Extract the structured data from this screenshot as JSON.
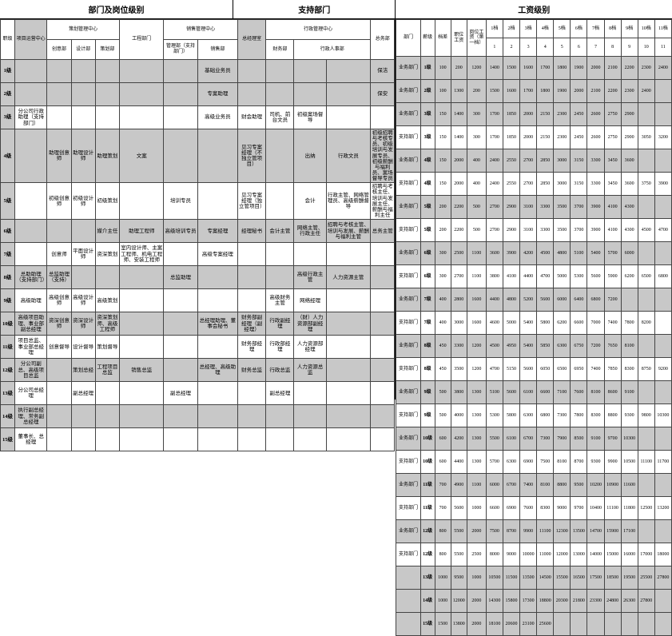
{
  "titles": {
    "left": "部门及岗位级别",
    "mid": "支持部门",
    "right": "工资级别"
  },
  "left_headers": {
    "row1": [
      "职级",
      "项目运营中心",
      "策划管理中心",
      "",
      "",
      "工程部门",
      "销售管理中心",
      "",
      "总经理室",
      "行政管理中心",
      "",
      "",
      ""
    ],
    "row2": [
      "",
      "",
      "创意部",
      "设计部",
      "策划部",
      "",
      "管理部（支持部门）",
      "销售部",
      "",
      "财务部",
      "行政人事部",
      "",
      "总务部"
    ]
  },
  "left_grades": [
    "1级",
    "2级",
    "3级",
    "4级",
    "5级",
    "6级",
    "7级",
    "8级",
    "9级",
    "10级",
    "11级",
    "12级",
    "13级",
    "14级",
    "15级"
  ],
  "left_cells": {
    "r1": [
      "",
      "",
      "",
      "",
      "",
      "",
      "基础业务员",
      "",
      "",
      "",
      "",
      "保洁"
    ],
    "r2": [
      "",
      "",
      "",
      "",
      "",
      "",
      "专案助理",
      "",
      "",
      "",
      "",
      "保安"
    ],
    "r3": [
      "分公司行政助理（支持部门）",
      "",
      "",
      "",
      "",
      "",
      "高级业务员",
      "财会助理",
      "司机、前台文员",
      "初级案场督导",
      "",
      ""
    ],
    "r4": [
      "",
      "助理创意师",
      "助理设计师",
      "助理策划",
      "文案",
      "",
      "",
      "见习专案经理（不独立管项目）",
      "",
      "出纳",
      "行政文员",
      "初级招聘与考核专员、初级培训与发展专员、初级薪酬与福利员、案场督导专员",
      ""
    ],
    "r5": [
      "",
      "初级创意师",
      "初级设计师",
      "初级策划",
      "",
      "培训专员",
      "",
      "见习专案经理（独立管项目）",
      "",
      "会计",
      "行政主管、网络管理员、高级薪酬督导",
      "招聘与考核主任、培训与发展主任、薪酬与福利主任",
      ""
    ],
    "r6": [
      "",
      "",
      "",
      "媒介主任",
      "助理工程师",
      "高级培训专员",
      "专案经理",
      "经理秘书",
      "会计主管",
      "网络主管、行政主任",
      "招聘与考核主管、培训与发展、薪酬与福利主管",
      "总务主管"
    ],
    "r7": [
      "",
      "创意师",
      "平面设计师",
      "资深策划",
      "室内设计师、主案工程师、机电工程师、安装工程师",
      "",
      "高级专案经理",
      "",
      "",
      "",
      "",
      ""
    ],
    "r8": [
      "总助助理（支持部门）",
      "总监助理（支持）",
      "",
      "",
      "",
      "总监助理",
      "",
      "",
      "",
      "高级行政主管",
      "人力资源主管",
      ""
    ],
    "r9": [
      "高级助理",
      "高级创意师",
      "高级设计师",
      "高级策划",
      "",
      "",
      "",
      "",
      "高级财务主管",
      "网络经理",
      "",
      ""
    ],
    "r10": [
      "高级项目助理、事业部副总经理",
      "资深创意师",
      "资深设计师",
      "资深策划师、高级工程师",
      "",
      "",
      "总经理助理、董事会秘书",
      "财务部副经理（副经理）",
      "行政副经理",
      "（财）人力资源部副经理",
      "",
      ""
    ],
    "r11": [
      "项目总监、事业部总经理",
      "创意督导",
      "设计督导",
      "策划督导",
      "",
      "",
      "",
      "财务部经理",
      "行政部经理",
      "人力资源部经理",
      "",
      ""
    ],
    "r12": [
      "分公司副总、高级项目总监",
      "",
      "策划总经",
      "工程项目总监",
      "销售总监",
      "",
      "总经理、高级助理",
      "财务总监",
      "行政总监",
      "人力资源总监",
      "",
      ""
    ],
    "r13": [
      "分公司总经理",
      "",
      "副总经理",
      "",
      "",
      "副总经理",
      "",
      "",
      "副总经理",
      "",
      "",
      ""
    ],
    "r14": [
      "执行副总经理、常务副总经理",
      "",
      "",
      "",
      "",
      "",
      "",
      "",
      "",
      "",
      "",
      ""
    ],
    "r15": [
      "董事长、总经理",
      "",
      "",
      "",
      "",
      "",
      "",
      "",
      "",
      "",
      "",
      ""
    ]
  },
  "salary_headers": [
    "部门",
    "薪级",
    "档差",
    "职位工资",
    "岗位工资（第一档）",
    "1档",
    "2档",
    "3档",
    "4档",
    "5档",
    "6档",
    "7档",
    "8档",
    "9档",
    "10档",
    "11档"
  ],
  "salary_nums": [
    "1",
    "2",
    "3",
    "4",
    "5",
    "6",
    "7",
    "8",
    "9",
    "10",
    "11"
  ],
  "salary_rows": [
    {
      "g": 1,
      "d": "业务部门",
      "lvl": "1级",
      "diff": 100,
      "base": 200,
      "pos": 1200,
      "vals": [
        1400,
        1500,
        1600,
        1700,
        1800,
        1900,
        2000,
        2100,
        2200,
        2300,
        2400
      ]
    },
    {
      "g": 1,
      "d": "业务部门",
      "lvl": "2级",
      "diff": 100,
      "base": 1300,
      "pos": 200,
      "vals": [
        1500,
        1600,
        1700,
        1800,
        1900,
        2000,
        2100,
        2200,
        2300,
        2400,
        ""
      ]
    },
    {
      "g": 1,
      "d": "业务部门",
      "lvl": "3级",
      "diff": 150,
      "base": 1400,
      "pos": 300,
      "vals": [
        1700,
        1850,
        2000,
        2150,
        2300,
        2450,
        2600,
        2750,
        2900,
        "",
        ""
      ]
    },
    {
      "g": 0,
      "d": "支持部门",
      "lvl": "3级",
      "diff": 150,
      "base": 1400,
      "pos": 300,
      "vals": [
        1700,
        1850,
        2000,
        2150,
        2300,
        2450,
        2600,
        2750,
        2900,
        3050,
        3200
      ]
    },
    {
      "g": 1,
      "d": "业务部门",
      "lvl": "4级",
      "diff": 150,
      "base": 2000,
      "pos": 400,
      "vals": [
        2400,
        2550,
        2700,
        2850,
        3000,
        3150,
        3300,
        3450,
        3600,
        "",
        ""
      ]
    },
    {
      "g": 0,
      "d": "支持部门",
      "lvl": "4级",
      "diff": 150,
      "base": 2000,
      "pos": 400,
      "vals": [
        2400,
        2550,
        2700,
        2850,
        3000,
        3150,
        3300,
        3450,
        3600,
        3750,
        3900
      ]
    },
    {
      "g": 1,
      "d": "业务部门",
      "lvl": "5级",
      "diff": 200,
      "base": 2200,
      "pos": 500,
      "vals": [
        2700,
        2900,
        3100,
        3300,
        3500,
        3700,
        3900,
        4100,
        4300,
        "",
        ""
      ]
    },
    {
      "g": 0,
      "d": "支持部门",
      "lvl": "5级",
      "diff": 200,
      "base": 2200,
      "pos": 500,
      "vals": [
        2700,
        2900,
        3100,
        3300,
        3500,
        3700,
        3900,
        4100,
        4300,
        4500,
        4700
      ]
    },
    {
      "g": 1,
      "d": "业务部门",
      "lvl": "6级",
      "diff": 300,
      "base": 2500,
      "pos": 1100,
      "vals": [
        3600,
        3900,
        4200,
        4500,
        4800,
        5100,
        5400,
        5700,
        6000,
        "",
        ""
      ]
    },
    {
      "g": 0,
      "d": "支持部门",
      "lvl": "6级",
      "diff": 300,
      "base": 2700,
      "pos": 1100,
      "vals": [
        3800,
        4100,
        4400,
        4700,
        5000,
        5300,
        5600,
        5900,
        6200,
        6500,
        6800
      ]
    },
    {
      "g": 1,
      "d": "业务部门",
      "lvl": "7级",
      "diff": 400,
      "base": 2800,
      "pos": 1600,
      "vals": [
        4400,
        4800,
        5200,
        5600,
        6000,
        6400,
        6800,
        7200,
        "",
        "",
        ""
      ]
    },
    {
      "g": 0,
      "d": "支持部门",
      "lvl": "7级",
      "diff": 400,
      "base": 3000,
      "pos": 1600,
      "vals": [
        4600,
        5000,
        5400,
        5800,
        6200,
        6600,
        7000,
        7400,
        7800,
        8200,
        ""
      ]
    },
    {
      "g": 1,
      "d": "业务部门",
      "lvl": "8级",
      "diff": 450,
      "base": 3300,
      "pos": 1200,
      "vals": [
        4500,
        4950,
        5400,
        5850,
        6300,
        6750,
        7200,
        7650,
        8100,
        "",
        ""
      ]
    },
    {
      "g": 0,
      "d": "支持部门",
      "lvl": "8级",
      "diff": 450,
      "base": 3500,
      "pos": 1200,
      "vals": [
        4700,
        5150,
        5600,
        6050,
        6500,
        6950,
        7400,
        7850,
        8300,
        8750,
        9200
      ]
    },
    {
      "g": 1,
      "d": "业务部门",
      "lvl": "9级",
      "diff": 500,
      "base": 3800,
      "pos": 1300,
      "vals": [
        5100,
        5600,
        6100,
        6600,
        7100,
        7600,
        8100,
        8600,
        9100,
        "",
        ""
      ]
    },
    {
      "g": 0,
      "d": "支持部门",
      "lvl": "9级",
      "diff": 500,
      "base": 4000,
      "pos": 1300,
      "vals": [
        5300,
        5800,
        6300,
        6800,
        7300,
        7800,
        8300,
        8800,
        9300,
        9800,
        10300
      ]
    },
    {
      "g": 1,
      "d": "业务部门",
      "lvl": "10级",
      "diff": 600,
      "base": 4200,
      "pos": 1300,
      "vals": [
        5500,
        6100,
        6700,
        7300,
        7900,
        8500,
        9100,
        9700,
        10300,
        "",
        ""
      ]
    },
    {
      "g": 0,
      "d": "支持部门",
      "lvl": "10级",
      "diff": 600,
      "base": 4400,
      "pos": 1300,
      "vals": [
        5700,
        6300,
        6900,
        7500,
        8100,
        8700,
        9300,
        9900,
        10500,
        11100,
        11700
      ]
    },
    {
      "g": 1,
      "d": "业务部门",
      "lvl": "11级",
      "diff": 700,
      "base": 4900,
      "pos": 1100,
      "vals": [
        6000,
        6700,
        7400,
        8100,
        8800,
        9500,
        10200,
        10900,
        11600,
        "",
        ""
      ]
    },
    {
      "g": 0,
      "d": "支持部门",
      "lvl": "11级",
      "diff": 700,
      "base": 5600,
      "pos": 1000,
      "vals": [
        6600,
        6900,
        7600,
        8300,
        9000,
        9700,
        10400,
        11100,
        11800,
        12500,
        13200
      ]
    },
    {
      "g": 1,
      "d": "业务部门",
      "lvl": "12级",
      "diff": 800,
      "base": 5500,
      "pos": 2000,
      "vals": [
        7500,
        8700,
        9900,
        11100,
        12300,
        13500,
        14700,
        15900,
        17100,
        "",
        ""
      ]
    },
    {
      "g": 0,
      "d": "支持部门",
      "lvl": "12级",
      "diff": 800,
      "base": 5500,
      "pos": 2500,
      "vals": [
        8000,
        9000,
        10000,
        11000,
        12000,
        13000,
        14000,
        15000,
        16000,
        17000,
        18000
      ]
    },
    {
      "g": 1,
      "d": "",
      "lvl": "13级",
      "diff": 1000,
      "base": 9500,
      "pos": 1000,
      "vals": [
        10500,
        11500,
        13500,
        14500,
        15500,
        16500,
        17500,
        18500,
        19500,
        25500,
        27800
      ]
    },
    {
      "g": 1,
      "d": "",
      "lvl": "14级",
      "diff": 1000,
      "base": 12000,
      "pos": 2000,
      "vals": [
        14300,
        15800,
        17300,
        18800,
        20300,
        21800,
        23300,
        24800,
        26300,
        27800,
        ""
      ]
    },
    {
      "g": 1,
      "d": "",
      "lvl": "15级",
      "diff": 1500,
      "base": 13800,
      "pos": 2000,
      "vals": [
        18100,
        20600,
        23100,
        25600,
        "",
        "",
        "",
        "",
        "",
        "",
        ""
      ]
    }
  ],
  "colors": {
    "grey": "#c8c8c8",
    "border": "#444444",
    "bg": "#ffffff"
  }
}
